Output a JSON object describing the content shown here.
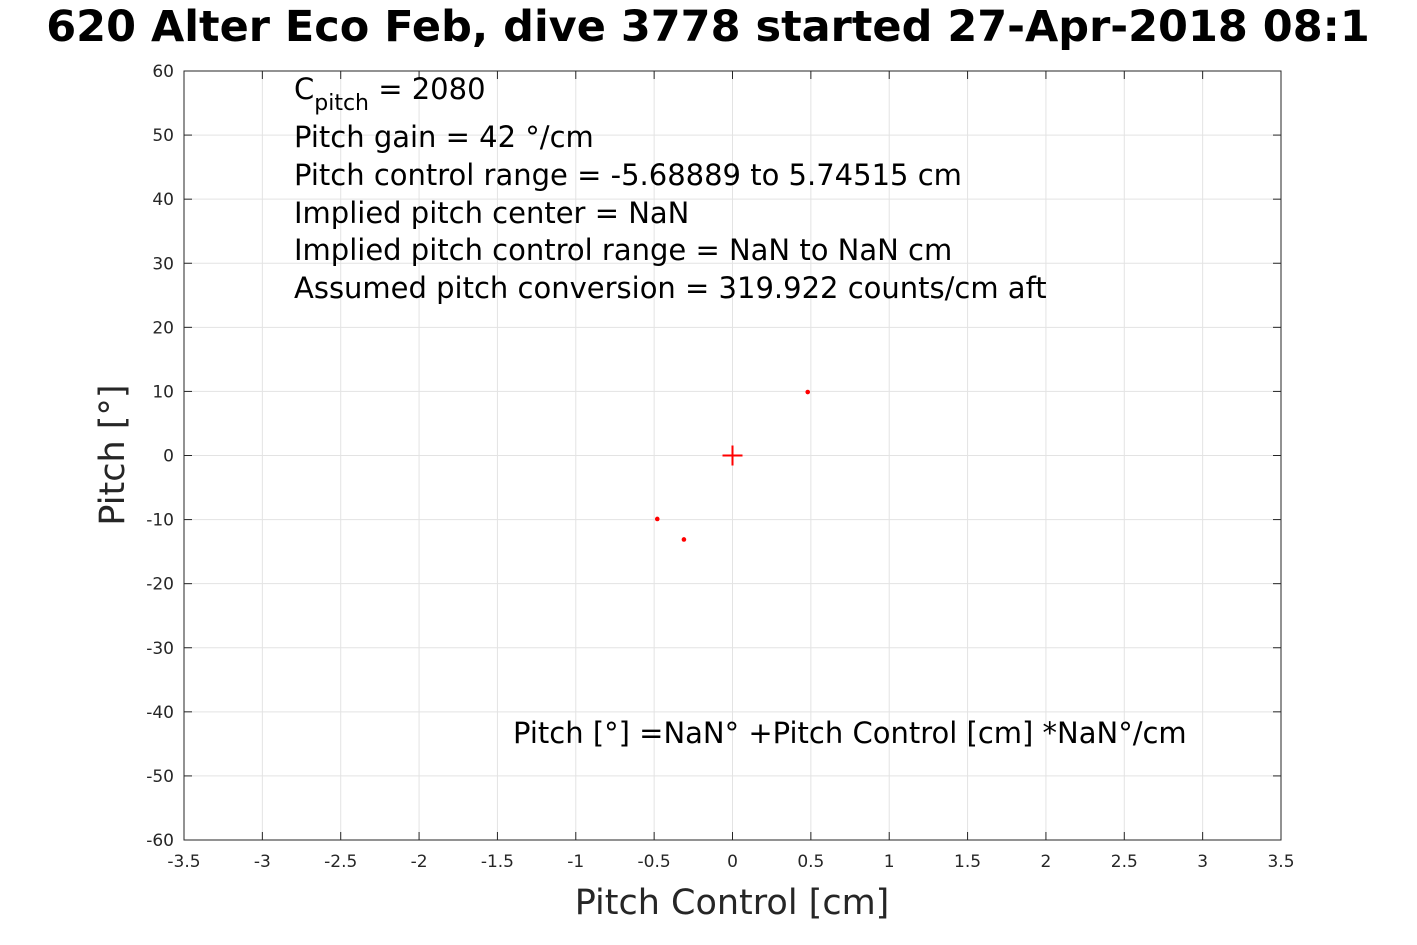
{
  "chart_data": {
    "type": "scatter",
    "title": "620 Alter Eco Feb, dive 3778 started 27-Apr-2018 08:1",
    "xlabel": "Pitch Control [cm]",
    "ylabel": "Pitch [°]",
    "xlim": [
      -3.5,
      3.5
    ],
    "ylim": [
      -60,
      60
    ],
    "xticks": [
      -3.5,
      -3,
      -2.5,
      -2,
      -1.5,
      -1,
      -0.5,
      0,
      0.5,
      1,
      1.5,
      2,
      2.5,
      3,
      3.5
    ],
    "xtick_labels": [
      "-3.5",
      "-3",
      "-2.5",
      "-2",
      "-1.5",
      "-1",
      "-0.5",
      "0",
      "0.5",
      "1",
      "1.5",
      "2",
      "2.5",
      "3",
      "3.5"
    ],
    "yticks": [
      60,
      50,
      40,
      30,
      20,
      10,
      0,
      -10,
      -20,
      -30,
      -40,
      -50,
      -60
    ],
    "ytick_labels": [
      "60",
      "50",
      "40",
      "30",
      "20",
      "10",
      "0",
      "-10",
      "-20",
      "-30",
      "-40",
      "-50",
      "-60"
    ],
    "grid": true,
    "series": [
      {
        "marker": "dot",
        "color": "#ff0000",
        "points": [
          {
            "x": 0.48,
            "y": 9.9
          },
          {
            "x": -0.48,
            "y": -9.9
          },
          {
            "x": -0.31,
            "y": -13.1
          }
        ]
      },
      {
        "marker": "plus",
        "color": "#ff0000",
        "points": [
          {
            "x": 0.0,
            "y": 0.0
          }
        ]
      }
    ],
    "annotations": {
      "cpitch": {
        "main": "C",
        "sub": "pitch",
        "rest": " = 2080"
      },
      "lines": [
        "Pitch gain = 42 °/cm",
        "Pitch control range = -5.68889 to 5.74515 cm",
        "Implied pitch center = NaN",
        "Implied pitch control range = NaN to NaN cm",
        "Assumed pitch conversion = 319.922 counts/cm aft"
      ],
      "fit_equation": "Pitch [°] =NaN° +Pitch Control [cm] *NaN°/cm"
    }
  }
}
